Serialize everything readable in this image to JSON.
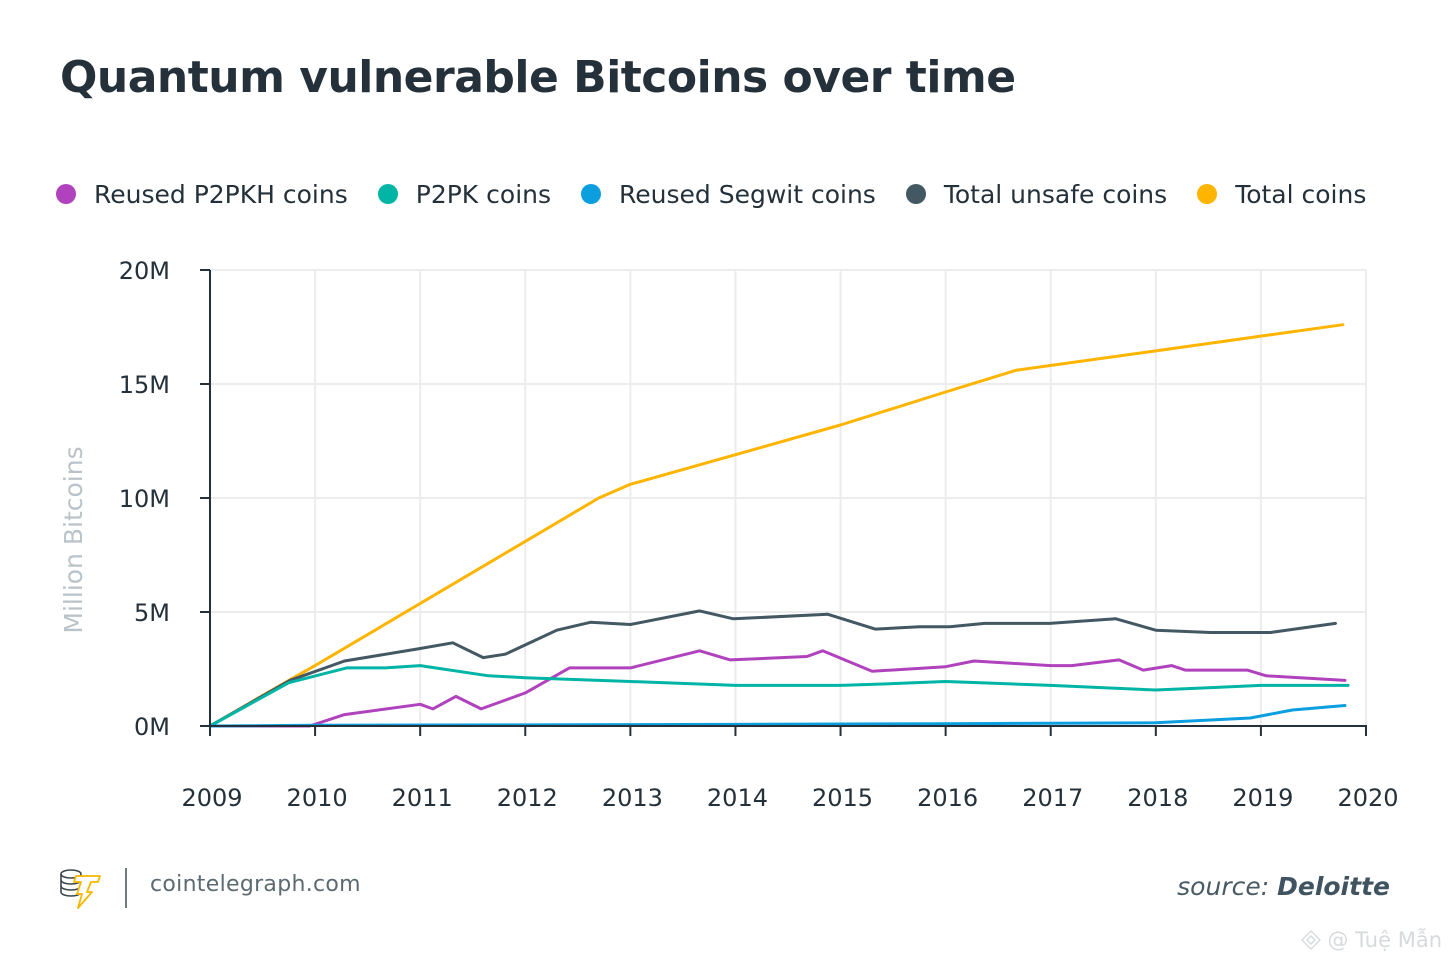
{
  "title": "Quantum vulnerable Bitcoins over time",
  "legend": [
    {
      "label": "Reused P2PKH coins",
      "color": "#b042bd"
    },
    {
      "label": "P2PK coins",
      "color": "#00b5a5"
    },
    {
      "label": "Reused Segwit coins",
      "color": "#0b9fe0"
    },
    {
      "label": "Total unsafe coins",
      "color": "#435863"
    },
    {
      "label": "Total coins",
      "color": "#ffb400"
    }
  ],
  "footer": {
    "site": "cointelegraph.com",
    "source_label": "source:",
    "source_value": "Deloitte",
    "watermark": "@ Tuệ Mẫn"
  },
  "chart_data": {
    "type": "line",
    "title": "Quantum vulnerable Bitcoins over time",
    "xlabel": "",
    "ylabel": "Million Bitcoins",
    "xlim": [
      2009,
      2020
    ],
    "ylim": [
      0,
      20
    ],
    "x_ticks": [
      2009,
      2010,
      2011,
      2012,
      2013,
      2014,
      2015,
      2016,
      2017,
      2018,
      2019,
      2020
    ],
    "x_tick_labels": [
      "2009",
      "2010",
      "2011",
      "2012",
      "2013",
      "2014",
      "2015",
      "2016",
      "2017",
      "2018",
      "2019",
      "2020"
    ],
    "y_ticks": [
      0,
      5,
      10,
      15,
      20
    ],
    "y_tick_labels": [
      "0M",
      "5M",
      "10M",
      "15M",
      "20M"
    ],
    "grid": true,
    "legend_position": "top",
    "series": [
      {
        "name": "Total coins",
        "color": "#ffb400",
        "points": [
          [
            2009.0,
            0
          ],
          [
            2009.75,
            2.0
          ],
          [
            2010.0,
            2.65
          ],
          [
            2012.7,
            10.0
          ],
          [
            2013.0,
            10.6
          ],
          [
            2014.0,
            11.9
          ],
          [
            2015.0,
            13.2
          ],
          [
            2016.0,
            14.65
          ],
          [
            2016.67,
            15.6
          ],
          [
            2018.0,
            16.45
          ],
          [
            2019.0,
            17.1
          ],
          [
            2019.78,
            17.6
          ]
        ]
      },
      {
        "name": "Total unsafe coins",
        "color": "#435863",
        "points": [
          [
            2009.0,
            0
          ],
          [
            2009.76,
            2.0
          ],
          [
            2010.28,
            2.85
          ],
          [
            2011.0,
            3.4
          ],
          [
            2011.31,
            3.65
          ],
          [
            2011.6,
            3.0
          ],
          [
            2011.81,
            3.15
          ],
          [
            2012.3,
            4.2
          ],
          [
            2012.62,
            4.55
          ],
          [
            2013.0,
            4.45
          ],
          [
            2013.66,
            5.05
          ],
          [
            2013.98,
            4.7
          ],
          [
            2014.88,
            4.9
          ],
          [
            2015.33,
            4.25
          ],
          [
            2015.75,
            4.35
          ],
          [
            2016.04,
            4.35
          ],
          [
            2016.37,
            4.5
          ],
          [
            2016.99,
            4.5
          ],
          [
            2017.62,
            4.7
          ],
          [
            2018.0,
            4.2
          ],
          [
            2018.52,
            4.1
          ],
          [
            2019.09,
            4.1
          ],
          [
            2019.71,
            4.5
          ]
        ]
      },
      {
        "name": "Reused P2PKH coins",
        "color": "#b042bd",
        "points": [
          [
            2009.0,
            0
          ],
          [
            2009.95,
            0
          ],
          [
            2010.28,
            0.5
          ],
          [
            2011.0,
            0.95
          ],
          [
            2011.12,
            0.75
          ],
          [
            2011.34,
            1.3
          ],
          [
            2011.58,
            0.75
          ],
          [
            2012.0,
            1.45
          ],
          [
            2012.42,
            2.55
          ],
          [
            2013.0,
            2.55
          ],
          [
            2013.66,
            3.3
          ],
          [
            2013.95,
            2.9
          ],
          [
            2014.68,
            3.05
          ],
          [
            2014.83,
            3.3
          ],
          [
            2015.3,
            2.4
          ],
          [
            2016.0,
            2.6
          ],
          [
            2016.27,
            2.85
          ],
          [
            2017.0,
            2.65
          ],
          [
            2017.2,
            2.65
          ],
          [
            2017.65,
            2.9
          ],
          [
            2017.88,
            2.45
          ],
          [
            2018.15,
            2.65
          ],
          [
            2018.28,
            2.45
          ],
          [
            2018.87,
            2.45
          ],
          [
            2019.05,
            2.2
          ],
          [
            2019.8,
            2.0
          ]
        ]
      },
      {
        "name": "P2PK coins",
        "color": "#00b5a5",
        "points": [
          [
            2009.0,
            0
          ],
          [
            2009.75,
            1.9
          ],
          [
            2010.3,
            2.55
          ],
          [
            2010.67,
            2.55
          ],
          [
            2011.0,
            2.65
          ],
          [
            2011.65,
            2.2
          ],
          [
            2012.0,
            2.12
          ],
          [
            2013.0,
            1.95
          ],
          [
            2014.0,
            1.78
          ],
          [
            2015.0,
            1.78
          ],
          [
            2015.33,
            1.83
          ],
          [
            2016.0,
            1.95
          ],
          [
            2016.33,
            1.9
          ],
          [
            2017.0,
            1.78
          ],
          [
            2018.0,
            1.58
          ],
          [
            2018.5,
            1.68
          ],
          [
            2019.0,
            1.78
          ],
          [
            2019.83,
            1.78
          ]
        ]
      },
      {
        "name": "Reused Segwit coins",
        "color": "#0b9fe0",
        "points": [
          [
            2009.0,
            0
          ],
          [
            2010.0,
            0.03
          ],
          [
            2012.0,
            0.05
          ],
          [
            2014.0,
            0.07
          ],
          [
            2016.0,
            0.1
          ],
          [
            2017.0,
            0.12
          ],
          [
            2018.0,
            0.14
          ],
          [
            2018.9,
            0.35
          ],
          [
            2019.3,
            0.7
          ],
          [
            2019.8,
            0.9
          ]
        ]
      }
    ]
  }
}
